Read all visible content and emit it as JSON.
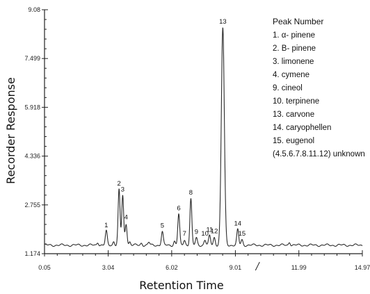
{
  "chart_data": {
    "type": "line",
    "title": "",
    "xlabel": "Retention Time",
    "ylabel": "Recorder Response",
    "xlim": [
      0.05,
      14.97
    ],
    "ylim": [
      1.174,
      9.08
    ],
    "xticks": [
      {
        "value": 0.05,
        "label": "0.05"
      },
      {
        "value": 3.04,
        "label": "3.04"
      },
      {
        "value": 6.02,
        "label": "6.02"
      },
      {
        "value": 9.01,
        "label": "9.01"
      },
      {
        "value": 11.99,
        "label": "11.99"
      },
      {
        "value": 14.97,
        "label": "14.97"
      }
    ],
    "yticks": [
      {
        "value": 1.174,
        "label": "1.174"
      },
      {
        "value": 2.755,
        "label": "2.755"
      },
      {
        "value": 4.336,
        "label": "4.336"
      },
      {
        "value": 5.918,
        "label": "5.918"
      },
      {
        "value": 7.499,
        "label": "7.499"
      },
      {
        "value": 9.08,
        "label": "9.08"
      }
    ],
    "baseline": 1.45,
    "series": [
      {
        "peaks": [
          {
            "label": "1",
            "x": 2.95,
            "y": 1.9
          },
          {
            "label": "2",
            "x": 3.55,
            "y": 3.25
          },
          {
            "label": "3",
            "x": 3.72,
            "y": 3.05
          },
          {
            "label": "4",
            "x": 3.88,
            "y": 2.15
          },
          {
            "label": "5",
            "x": 5.58,
            "y": 1.88
          },
          {
            "label": "6",
            "x": 6.35,
            "y": 2.45
          },
          {
            "label": "7",
            "x": 6.62,
            "y": 1.62
          },
          {
            "label": "8",
            "x": 6.92,
            "y": 2.95
          },
          {
            "label": "9",
            "x": 7.18,
            "y": 1.68
          },
          {
            "label": "10",
            "x": 7.58,
            "y": 1.62
          },
          {
            "label": "11",
            "x": 7.8,
            "y": 1.75
          },
          {
            "label": "12",
            "x": 8.02,
            "y": 1.7
          },
          {
            "label": "13",
            "x": 8.42,
            "y": 8.5
          },
          {
            "label": "14",
            "x": 9.12,
            "y": 1.95
          },
          {
            "label": "15",
            "x": 9.32,
            "y": 1.62
          }
        ],
        "minor_peaks": [
          {
            "x": 2.55,
            "y": 1.55
          },
          {
            "x": 3.3,
            "y": 1.58
          },
          {
            "x": 4.05,
            "y": 1.56
          },
          {
            "x": 4.6,
            "y": 1.52
          },
          {
            "x": 4.95,
            "y": 1.54
          },
          {
            "x": 6.15,
            "y": 1.58
          },
          {
            "x": 11.55,
            "y": 1.56
          }
        ]
      }
    ],
    "grid": false,
    "legend": {
      "placement": "top-right",
      "title": "Peak Number",
      "items": [
        "1. α- pinene",
        "2. B- pinene",
        "3. limonene",
        "4. cymene",
        "9. cineol",
        "10. terpinene",
        "13. carvone",
        "14. caryophellen",
        "15. eugenol",
        "(4.5.6.7.8.11.12) unknown"
      ]
    }
  }
}
